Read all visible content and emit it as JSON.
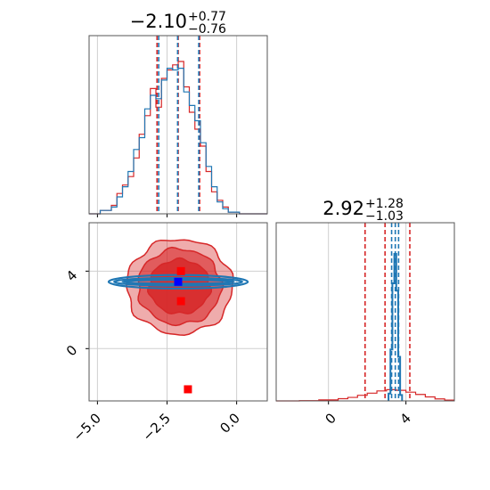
{
  "chart_data": {
    "type": "corner",
    "panels": [
      {
        "name": "marginal-param-1",
        "type": "histogram",
        "title": {
          "median": "−2.10",
          "plus": "+0.77",
          "minus": "−0.76"
        },
        "xlim": [
          -5.3,
          1.1
        ],
        "show_x_ticklabels": false,
        "show_y_ticklabels": false,
        "grid": true,
        "series": [
          {
            "name": "",
            "color": "#d62728",
            "quantile_lines": [
              -2.86,
              -2.1,
              -1.33
            ],
            "bins": [
              [
                -5.3,
                -4.9,
                0.0
              ],
              [
                -4.9,
                -4.5,
                0.02
              ],
              [
                -4.5,
                -4.3,
                0.05
              ],
              [
                -4.3,
                -4.1,
                0.12
              ],
              [
                -4.1,
                -3.9,
                0.17
              ],
              [
                -3.9,
                -3.7,
                0.22
              ],
              [
                -3.7,
                -3.5,
                0.33
              ],
              [
                -3.5,
                -3.3,
                0.47
              ],
              [
                -3.3,
                -3.1,
                0.58
              ],
              [
                -3.1,
                -2.9,
                0.74
              ],
              [
                -2.9,
                -2.7,
                0.63
              ],
              [
                -2.7,
                -2.5,
                0.8
              ],
              [
                -2.5,
                -2.3,
                0.85
              ],
              [
                -2.3,
                -2.1,
                0.88
              ],
              [
                -2.1,
                -1.9,
                0.9
              ],
              [
                -1.9,
                -1.7,
                0.75
              ],
              [
                -1.7,
                -1.5,
                0.6
              ],
              [
                -1.5,
                -1.3,
                0.5
              ],
              [
                -1.3,
                -1.1,
                0.4
              ],
              [
                -1.1,
                -0.9,
                0.25
              ],
              [
                -0.9,
                -0.7,
                0.13
              ],
              [
                -0.7,
                -0.5,
                0.08
              ],
              [
                -0.5,
                -0.3,
                0.04
              ],
              [
                -0.3,
                0.1,
                0.01
              ],
              [
                0.1,
                1.1,
                0.0
              ]
            ]
          },
          {
            "name": "",
            "color": "#1f77b4",
            "quantile_lines": [
              -2.8,
              -2.12,
              -1.36
            ],
            "bins": [
              [
                -5.3,
                -4.9,
                0.0
              ],
              [
                -4.9,
                -4.5,
                0.02
              ],
              [
                -4.5,
                -4.3,
                0.04
              ],
              [
                -4.3,
                -4.1,
                0.1
              ],
              [
                -4.1,
                -3.9,
                0.16
              ],
              [
                -3.9,
                -3.7,
                0.25
              ],
              [
                -3.7,
                -3.5,
                0.38
              ],
              [
                -3.5,
                -3.3,
                0.45
              ],
              [
                -3.3,
                -3.1,
                0.62
              ],
              [
                -3.1,
                -2.9,
                0.7
              ],
              [
                -2.9,
                -2.7,
                0.68
              ],
              [
                -2.7,
                -2.5,
                0.79
              ],
              [
                -2.5,
                -2.3,
                0.86
              ],
              [
                -2.3,
                -2.1,
                0.85
              ],
              [
                -2.1,
                -1.9,
                0.86
              ],
              [
                -1.9,
                -1.7,
                0.72
              ],
              [
                -1.7,
                -1.5,
                0.64
              ],
              [
                -1.5,
                -1.3,
                0.55
              ],
              [
                -1.3,
                -1.1,
                0.42
              ],
              [
                -1.1,
                -0.9,
                0.28
              ],
              [
                -0.9,
                -0.7,
                0.16
              ],
              [
                -0.7,
                -0.5,
                0.07
              ],
              [
                -0.5,
                -0.3,
                0.03
              ],
              [
                -0.3,
                0.1,
                0.01
              ],
              [
                0.1,
                1.1,
                0.0
              ]
            ]
          }
        ]
      },
      {
        "name": "joint-param-1-param-2",
        "type": "contour",
        "xlim": [
          -5.3,
          1.1
        ],
        "ylim": [
          -2.7,
          6.5
        ],
        "x_ticks": [
          -5.0,
          -2.5,
          0.0
        ],
        "x_tick_labels": [
          "−5.0",
          "−2.5",
          "0.0"
        ],
        "y_ticks": [
          0,
          4
        ],
        "y_tick_labels": [
          "0",
          "4"
        ],
        "grid": true,
        "red_contours": {
          "center": [
            -2.05,
            3.2
          ],
          "levels": [
            {
              "radius": [
                1.1,
                1.4
              ],
              "fill_opacity": 1.0
            },
            {
              "radius": [
                1.5,
                1.95
              ],
              "fill_opacity": 0.7
            },
            {
              "radius": [
                1.9,
                2.45
              ],
              "fill_opacity": 0.45
            }
          ]
        },
        "blue_contours": {
          "center": [
            -2.1,
            3.45
          ],
          "levels": [
            {
              "radius": [
                2.0,
                0.1
              ]
            },
            {
              "radius": [
                2.3,
                0.2
              ]
            },
            {
              "radius": [
                2.5,
                0.35
              ]
            }
          ]
        },
        "markers": [
          {
            "x": -2.1,
            "y": 3.45,
            "color": "#0000ff"
          },
          {
            "x": -2.0,
            "y": 2.45,
            "color": "#ff0000"
          },
          {
            "x": -2.0,
            "y": 4.0,
            "color": "#ff0000"
          },
          {
            "x": -1.75,
            "y": -2.1,
            "color": "#ff0000"
          }
        ]
      },
      {
        "name": "marginal-param-2",
        "type": "histogram",
        "title": {
          "median": "2.92",
          "plus": "+1.28",
          "minus": "−1.03"
        },
        "xlim": [
          -2.7,
          6.5
        ],
        "x_ticks": [
          0,
          4
        ],
        "x_tick_labels": [
          "0",
          "4"
        ],
        "show_y_ticklabels": false,
        "grid": true,
        "series": [
          {
            "name": "",
            "color": "#d62728",
            "quantile_lines": [
              1.89,
              2.92,
              4.2
            ],
            "bins": [
              [
                -2.7,
                -1.5,
                0.0
              ],
              [
                -1.5,
                -0.5,
                0.002
              ],
              [
                -0.5,
                0.5,
                0.008
              ],
              [
                0.5,
                1.0,
                0.018
              ],
              [
                1.0,
                1.5,
                0.028
              ],
              [
                1.5,
                2.0,
                0.045
              ],
              [
                2.0,
                2.5,
                0.062
              ],
              [
                2.5,
                3.0,
                0.08
              ],
              [
                3.0,
                3.5,
                0.09
              ],
              [
                3.5,
                4.0,
                0.085
              ],
              [
                4.0,
                4.5,
                0.07
              ],
              [
                4.5,
                5.0,
                0.052
              ],
              [
                5.0,
                5.5,
                0.032
              ],
              [
                5.5,
                6.0,
                0.016
              ],
              [
                6.0,
                6.5,
                0.006
              ]
            ]
          },
          {
            "name": "",
            "color": "#1f77b4",
            "quantile_lines": [
              3.26,
              3.45,
              3.62
            ],
            "bins": [
              [
                3.1,
                3.2,
                0.05
              ],
              [
                3.2,
                3.3,
                0.35
              ],
              [
                3.3,
                3.4,
                0.8
              ],
              [
                3.4,
                3.5,
                1.0
              ],
              [
                3.5,
                3.6,
                0.75
              ],
              [
                3.6,
                3.7,
                0.3
              ],
              [
                3.7,
                3.8,
                0.04
              ]
            ]
          }
        ]
      }
    ]
  }
}
